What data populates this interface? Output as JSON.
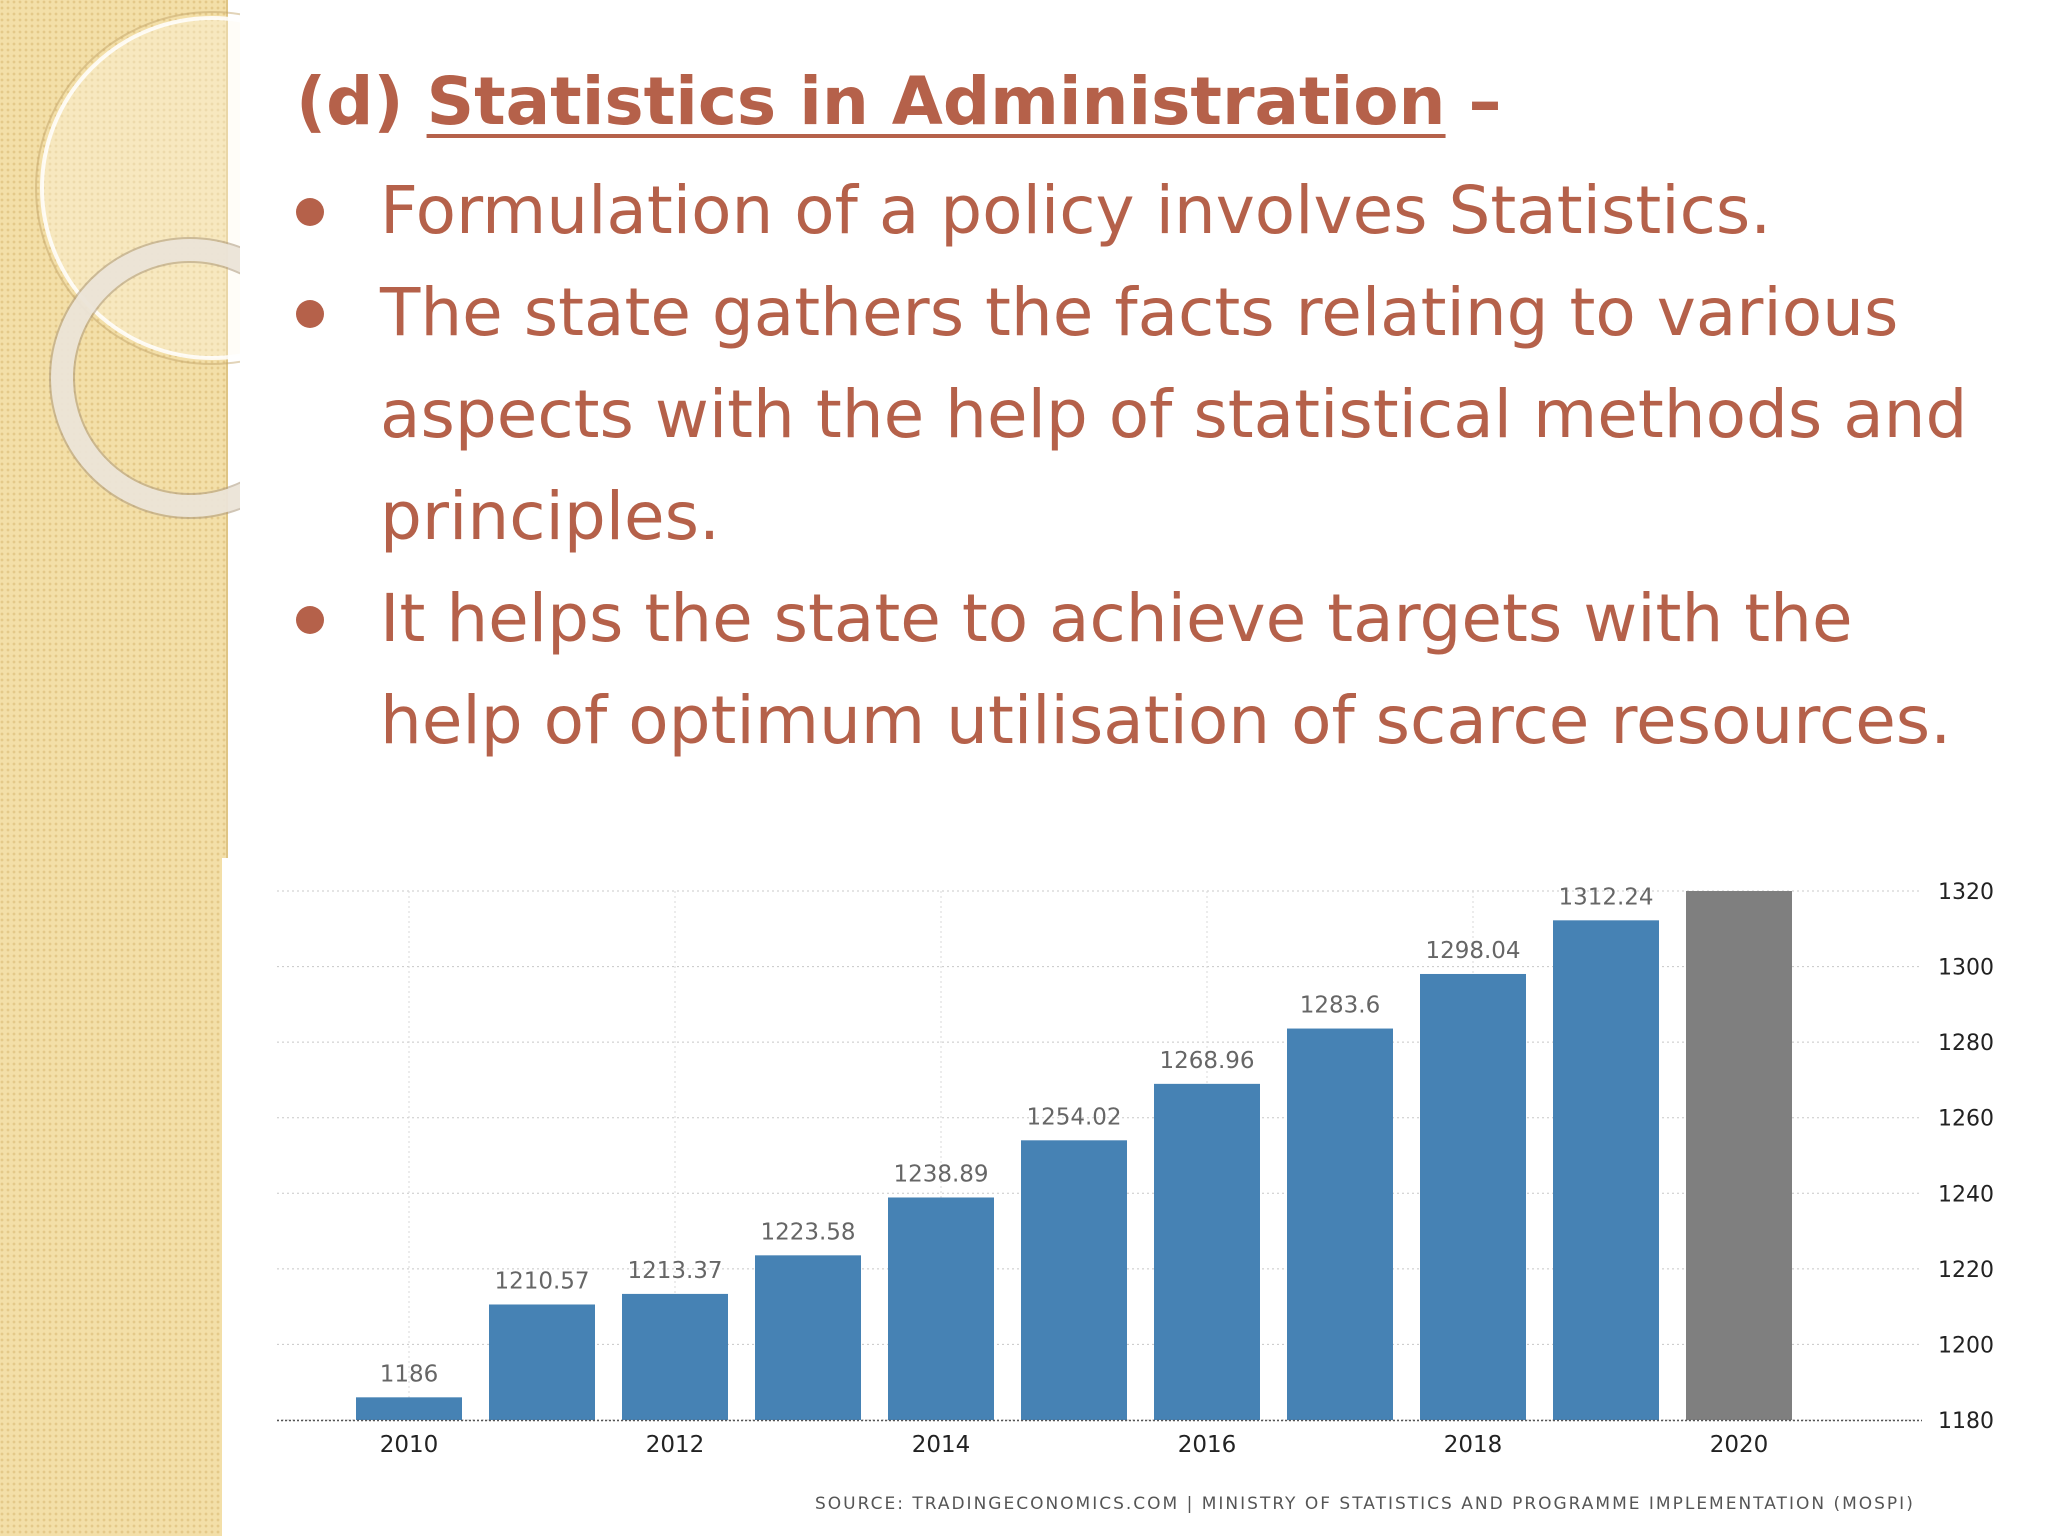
{
  "slide": {
    "title_prefix": "(d)",
    "title": "Statistics in Administration",
    "title_suffix": "–",
    "bullets": [
      "Formulation of a policy involves Statistics.",
      "The state gathers the facts relating to various aspects with the help of statistical methods and principles.",
      "It helps the state to achieve targets with the help of optimum utilisation of scarce resources."
    ],
    "colors": {
      "text": "#b5614a",
      "background_strip": "#f3dfa8"
    }
  },
  "chart_data": {
    "type": "bar",
    "title": "",
    "xlabel": "",
    "ylabel": "",
    "categories": [
      "2010",
      "2011",
      "2012",
      "2013",
      "2014",
      "2015",
      "2016",
      "2017",
      "2018",
      "2019",
      "2020"
    ],
    "x_tick_labels": [
      "2010",
      "2012",
      "2014",
      "2016",
      "2018",
      "2020"
    ],
    "values": [
      1186,
      1210.57,
      1213.37,
      1223.58,
      1238.89,
      1254.02,
      1268.96,
      1283.6,
      1298.04,
      1312.24,
      1320
    ],
    "data_labels": [
      "1186",
      "1210.57",
      "1213.37",
      "1223.58",
      "1238.89",
      "1254.02",
      "1268.96",
      "1283.6",
      "1298.04",
      "1312.24",
      ""
    ],
    "bar_colors": [
      "#4682b4",
      "#4682b4",
      "#4682b4",
      "#4682b4",
      "#4682b4",
      "#4682b4",
      "#4682b4",
      "#4682b4",
      "#4682b4",
      "#4682b4",
      "#7f7f7f"
    ],
    "ylim": [
      1180,
      1320
    ],
    "y_ticks": [
      1180,
      1200,
      1220,
      1240,
      1260,
      1280,
      1300,
      1320
    ],
    "y_axis_side": "right",
    "grid": true,
    "legend": "none",
    "source": "SOURCE: TRADINGECONOMICS.COM | MINISTRY OF STATISTICS AND PROGRAMME IMPLEMENTATION (MOSPI)"
  }
}
